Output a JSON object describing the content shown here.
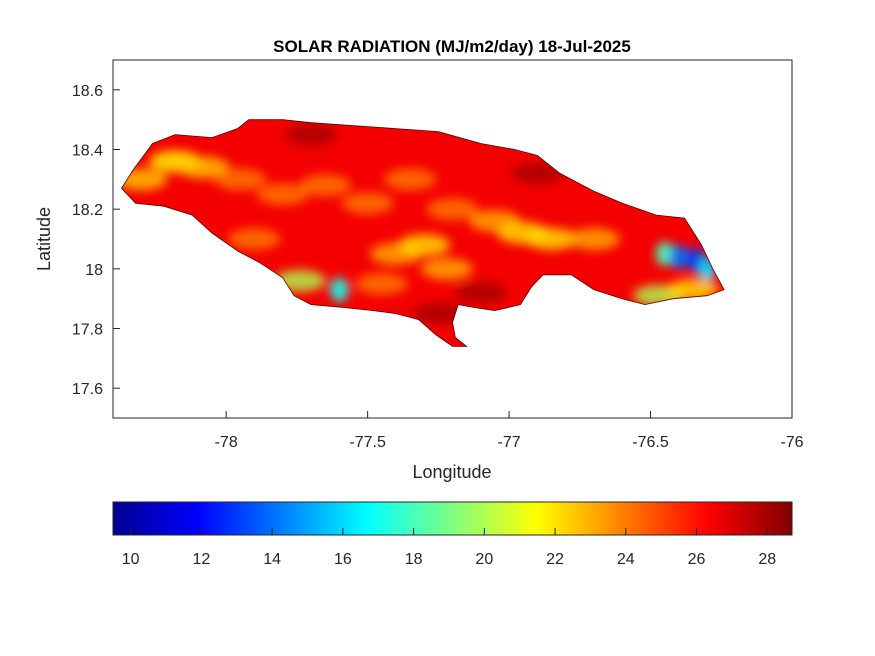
{
  "chart_data": {
    "type": "heatmap",
    "title": "SOLAR RADIATION (MJ/m2/day) 18-Jul-2025",
    "xlabel": "Longitude",
    "ylabel": "Latitude",
    "xlim": [
      -78.4,
      -76
    ],
    "ylim": [
      17.5,
      18.7
    ],
    "x_ticks": [
      "-78",
      "-77.5",
      "-77",
      "-76.5",
      "-76"
    ],
    "x_tick_values": [
      -78,
      -77.5,
      -77,
      -76.5,
      -76
    ],
    "y_ticks": [
      "17.6",
      "17.8",
      "18",
      "18.2",
      "18.4",
      "18.6"
    ],
    "y_tick_values": [
      17.6,
      17.8,
      18.0,
      18.2,
      18.4,
      18.6
    ],
    "grid": false,
    "colormap": "jet",
    "colorbar": {
      "orientation": "horizontal",
      "position": "bottom",
      "range": [
        9.5,
        28.7
      ],
      "ticks": [
        "10",
        "12",
        "14",
        "16",
        "18",
        "20",
        "22",
        "24",
        "26",
        "28"
      ],
      "tick_values": [
        10,
        12,
        14,
        16,
        18,
        20,
        22,
        24,
        26,
        28
      ]
    },
    "region_outline": [
      [
        -78.37,
        18.27
      ],
      [
        -78.33,
        18.33
      ],
      [
        -78.26,
        18.42
      ],
      [
        -78.18,
        18.45
      ],
      [
        -78.05,
        18.44
      ],
      [
        -77.96,
        18.47
      ],
      [
        -77.92,
        18.5
      ],
      [
        -77.8,
        18.5
      ],
      [
        -77.7,
        18.49
      ],
      [
        -77.55,
        18.48
      ],
      [
        -77.4,
        18.47
      ],
      [
        -77.25,
        18.46
      ],
      [
        -77.1,
        18.42
      ],
      [
        -76.98,
        18.4
      ],
      [
        -76.9,
        18.38
      ],
      [
        -76.82,
        18.32
      ],
      [
        -76.7,
        18.26
      ],
      [
        -76.6,
        18.22
      ],
      [
        -76.48,
        18.18
      ],
      [
        -76.38,
        18.17
      ],
      [
        -76.32,
        18.08
      ],
      [
        -76.28,
        18.0
      ],
      [
        -76.24,
        17.93
      ],
      [
        -76.3,
        17.91
      ],
      [
        -76.42,
        17.9
      ],
      [
        -76.52,
        17.88
      ],
      [
        -76.6,
        17.9
      ],
      [
        -76.7,
        17.93
      ],
      [
        -76.78,
        17.98
      ],
      [
        -76.88,
        17.98
      ],
      [
        -76.92,
        17.94
      ],
      [
        -76.96,
        17.88
      ],
      [
        -77.05,
        17.86
      ],
      [
        -77.12,
        17.87
      ],
      [
        -77.18,
        17.88
      ],
      [
        -77.2,
        17.82
      ],
      [
        -77.19,
        17.77
      ],
      [
        -77.15,
        17.74
      ],
      [
        -77.2,
        17.74
      ],
      [
        -77.26,
        17.78
      ],
      [
        -77.32,
        17.83
      ],
      [
        -77.4,
        17.85
      ],
      [
        -77.48,
        17.86
      ],
      [
        -77.58,
        17.87
      ],
      [
        -77.7,
        17.88
      ],
      [
        -77.76,
        17.91
      ],
      [
        -77.8,
        17.97
      ],
      [
        -77.88,
        18.02
      ],
      [
        -77.96,
        18.06
      ],
      [
        -78.05,
        18.12
      ],
      [
        -78.12,
        18.18
      ],
      [
        -78.22,
        18.21
      ],
      [
        -78.32,
        18.22
      ],
      [
        -78.37,
        18.27
      ]
    ],
    "base_value": 26.5,
    "features": [
      {
        "lon": -78.18,
        "lat": 18.36,
        "value": 21.5
      },
      {
        "lon": -78.08,
        "lat": 18.34,
        "value": 22.5
      },
      {
        "lon": -78.3,
        "lat": 18.3,
        "value": 22.5
      },
      {
        "lon": -77.95,
        "lat": 18.3,
        "value": 24
      },
      {
        "lon": -77.8,
        "lat": 18.25,
        "value": 24
      },
      {
        "lon": -77.65,
        "lat": 18.28,
        "value": 24
      },
      {
        "lon": -77.5,
        "lat": 18.22,
        "value": 24
      },
      {
        "lon": -77.35,
        "lat": 18.3,
        "value": 24
      },
      {
        "lon": -77.2,
        "lat": 18.2,
        "value": 24
      },
      {
        "lon": -77.05,
        "lat": 18.16,
        "value": 23
      },
      {
        "lon": -76.95,
        "lat": 18.12,
        "value": 22
      },
      {
        "lon": -76.85,
        "lat": 18.1,
        "value": 22
      },
      {
        "lon": -76.7,
        "lat": 18.1,
        "value": 23
      },
      {
        "lon": -77.4,
        "lat": 18.05,
        "value": 23
      },
      {
        "lon": -77.22,
        "lat": 18.0,
        "value": 23
      },
      {
        "lon": -77.3,
        "lat": 18.08,
        "value": 22
      },
      {
        "lon": -77.74,
        "lat": 17.96,
        "value": 20
      },
      {
        "lon": -77.6,
        "lat": 17.93,
        "value": 17
      },
      {
        "lon": -77.45,
        "lat": 17.95,
        "value": 24
      },
      {
        "lon": -77.9,
        "lat": 18.1,
        "value": 24
      },
      {
        "lon": -76.45,
        "lat": 18.05,
        "value": 18
      },
      {
        "lon": -76.4,
        "lat": 18.04,
        "value": 14
      },
      {
        "lon": -76.34,
        "lat": 18.03,
        "value": 13
      },
      {
        "lon": -76.3,
        "lat": 18.0,
        "value": 16
      },
      {
        "lon": -76.47,
        "lat": 17.91,
        "value": 20
      },
      {
        "lon": -76.35,
        "lat": 17.93,
        "value": 22
      },
      {
        "lon": -76.9,
        "lat": 18.32,
        "value": 28
      },
      {
        "lon": -77.1,
        "lat": 17.92,
        "value": 28
      },
      {
        "lon": -77.7,
        "lat": 18.45,
        "value": 28
      },
      {
        "lon": -77.25,
        "lat": 17.85,
        "value": 28
      }
    ]
  }
}
